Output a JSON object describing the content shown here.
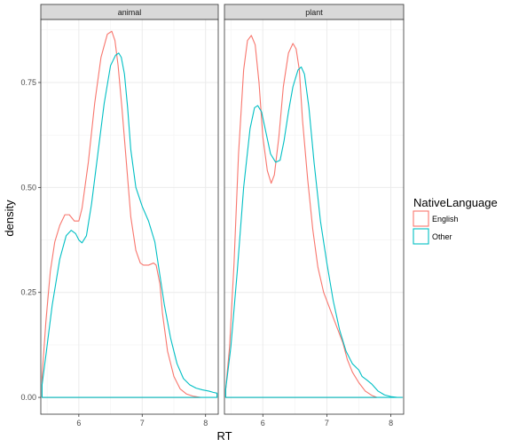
{
  "chart_data": {
    "type": "line",
    "subtype": "faceted density",
    "xlabel": "RT",
    "ylabel": "density",
    "xlim": [
      5.4,
      8.2
    ],
    "ylim": [
      -0.04,
      0.9
    ],
    "x_ticks": [
      6,
      7,
      8
    ],
    "y_ticks": [
      0.0,
      0.25,
      0.5,
      0.75
    ],
    "y_tick_labels": [
      "0.00",
      "0.25",
      "0.50",
      "0.75"
    ],
    "grid": true,
    "legend": {
      "title": "NativeLanguage",
      "placement": "right",
      "entries": [
        "English",
        "Other"
      ]
    },
    "colors": {
      "English": "#F8766D",
      "Other": "#00BFC4"
    },
    "facets": [
      {
        "label": "animal",
        "series": [
          {
            "name": "English",
            "x": [
              5.42,
              5.48,
              5.55,
              5.62,
              5.7,
              5.78,
              5.85,
              5.93,
              6.0,
              6.05,
              6.15,
              6.25,
              6.35,
              6.45,
              6.52,
              6.57,
              6.62,
              6.68,
              6.75,
              6.82,
              6.9,
              6.97,
              7.02,
              7.1,
              7.18,
              7.22,
              7.28,
              7.32,
              7.4,
              7.5,
              7.6,
              7.7,
              7.8,
              7.92
            ],
            "y": [
              0.05,
              0.18,
              0.3,
              0.37,
              0.41,
              0.435,
              0.435,
              0.42,
              0.42,
              0.45,
              0.56,
              0.7,
              0.81,
              0.865,
              0.872,
              0.85,
              0.79,
              0.69,
              0.56,
              0.43,
              0.35,
              0.32,
              0.315,
              0.315,
              0.32,
              0.315,
              0.27,
              0.2,
              0.11,
              0.05,
              0.02,
              0.008,
              0.003,
              0.0
            ]
          },
          {
            "name": "Other",
            "x": [
              5.42,
              5.48,
              5.58,
              5.7,
              5.8,
              5.88,
              5.95,
              6.0,
              6.05,
              6.12,
              6.2,
              6.3,
              6.4,
              6.5,
              6.58,
              6.63,
              6.67,
              6.72,
              6.77,
              6.82,
              6.9,
              7.0,
              7.1,
              7.2,
              7.28,
              7.35,
              7.45,
              7.55,
              7.65,
              7.75,
              7.85,
              7.95,
              8.05,
              8.12,
              8.18
            ],
            "y": [
              0.03,
              0.1,
              0.22,
              0.33,
              0.385,
              0.398,
              0.39,
              0.375,
              0.368,
              0.385,
              0.46,
              0.58,
              0.7,
              0.79,
              0.815,
              0.82,
              0.81,
              0.77,
              0.69,
              0.59,
              0.5,
              0.455,
              0.42,
              0.37,
              0.29,
              0.22,
              0.14,
              0.08,
              0.045,
              0.03,
              0.022,
              0.018,
              0.015,
              0.012,
              0.01
            ]
          }
        ]
      },
      {
        "label": "plant",
        "series": [
          {
            "name": "English",
            "x": [
              5.42,
              5.48,
              5.55,
              5.62,
              5.7,
              5.76,
              5.82,
              5.88,
              5.94,
              6.0,
              6.07,
              6.13,
              6.18,
              6.25,
              6.32,
              6.4,
              6.47,
              6.52,
              6.57,
              6.62,
              6.7,
              6.78,
              6.86,
              6.95,
              7.05,
              7.15,
              7.25,
              7.32,
              7.4,
              7.5,
              7.6,
              7.7,
              7.78
            ],
            "y": [
              0.02,
              0.12,
              0.32,
              0.58,
              0.78,
              0.85,
              0.862,
              0.84,
              0.75,
              0.62,
              0.54,
              0.51,
              0.53,
              0.62,
              0.74,
              0.82,
              0.843,
              0.83,
              0.78,
              0.66,
              0.52,
              0.4,
              0.31,
              0.25,
              0.21,
              0.17,
              0.13,
              0.09,
              0.06,
              0.035,
              0.015,
              0.005,
              0.0
            ]
          },
          {
            "name": "Other",
            "x": [
              5.42,
              5.5,
              5.6,
              5.7,
              5.8,
              5.87,
              5.92,
              5.98,
              6.05,
              6.12,
              6.2,
              6.27,
              6.33,
              6.4,
              6.47,
              6.55,
              6.6,
              6.65,
              6.72,
              6.8,
              6.9,
              7.0,
              7.1,
              7.2,
              7.3,
              7.4,
              7.5,
              7.55,
              7.62,
              7.7,
              7.8,
              7.9,
              8.0,
              8.1,
              8.18
            ],
            "y": [
              0.02,
              0.12,
              0.3,
              0.5,
              0.64,
              0.69,
              0.695,
              0.68,
              0.63,
              0.58,
              0.56,
              0.565,
              0.61,
              0.68,
              0.74,
              0.78,
              0.787,
              0.77,
              0.69,
              0.56,
              0.42,
              0.32,
              0.23,
              0.16,
              0.11,
              0.08,
              0.065,
              0.05,
              0.042,
              0.032,
              0.015,
              0.006,
              0.002,
              0.0,
              0.0
            ]
          }
        ]
      }
    ]
  }
}
